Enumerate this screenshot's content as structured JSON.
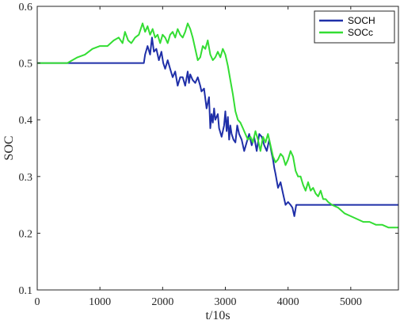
{
  "chart_data": {
    "type": "line",
    "title": "",
    "xlabel": "t/10s",
    "ylabel": "SOC",
    "xlim": [
      0,
      5760
    ],
    "ylim": [
      0.1,
      0.6
    ],
    "xticks": [
      0,
      1000,
      2000,
      3000,
      4000,
      5000
    ],
    "yticks": [
      0.1,
      0.2,
      0.3,
      0.4,
      0.5,
      0.6
    ],
    "xtick_labels": [
      "0",
      "1000",
      "2000",
      "3000",
      "4000",
      "5000"
    ],
    "ytick_labels": [
      "0.1",
      "0.2",
      "0.3",
      "0.4",
      "0.5",
      "0.6"
    ],
    "grid": false,
    "legend_position": "top-right",
    "series": [
      {
        "name": "SOCH",
        "color": "#1f2fa8",
        "x": [
          0,
          1700,
          1720,
          1760,
          1800,
          1830,
          1860,
          1900,
          1940,
          1980,
          2010,
          2040,
          2080,
          2120,
          2160,
          2200,
          2240,
          2280,
          2320,
          2360,
          2400,
          2420,
          2440,
          2480,
          2520,
          2560,
          2600,
          2620,
          2660,
          2700,
          2740,
          2760,
          2780,
          2800,
          2820,
          2840,
          2880,
          2900,
          2940,
          2980,
          3000,
          3020,
          3040,
          3060,
          3080,
          3100,
          3130,
          3160,
          3190,
          3220,
          3260,
          3300,
          3340,
          3380,
          3420,
          3460,
          3500,
          3540,
          3580,
          3620,
          3660,
          3700,
          3740,
          3760,
          3780,
          3800,
          3840,
          3880,
          3920,
          3960,
          4000,
          4040,
          4070,
          4100,
          4130,
          4160,
          4200,
          4300,
          4400,
          4500,
          4600,
          4800,
          5000,
          5200,
          5400,
          5600,
          5760
        ],
        "values": [
          0.5,
          0.5,
          0.515,
          0.53,
          0.515,
          0.545,
          0.52,
          0.525,
          0.505,
          0.52,
          0.5,
          0.49,
          0.505,
          0.49,
          0.475,
          0.485,
          0.46,
          0.475,
          0.475,
          0.46,
          0.485,
          0.465,
          0.48,
          0.47,
          0.465,
          0.475,
          0.46,
          0.45,
          0.455,
          0.42,
          0.44,
          0.385,
          0.41,
          0.395,
          0.42,
          0.4,
          0.41,
          0.385,
          0.37,
          0.39,
          0.415,
          0.38,
          0.405,
          0.365,
          0.39,
          0.375,
          0.365,
          0.36,
          0.39,
          0.375,
          0.365,
          0.345,
          0.36,
          0.375,
          0.355,
          0.37,
          0.345,
          0.375,
          0.37,
          0.355,
          0.345,
          0.365,
          0.34,
          0.33,
          0.315,
          0.305,
          0.28,
          0.29,
          0.27,
          0.25,
          0.255,
          0.25,
          0.245,
          0.23,
          0.25,
          0.25,
          0.25,
          0.25,
          0.25,
          0.25,
          0.25,
          0.25,
          0.25,
          0.25,
          0.25,
          0.25,
          0.25
        ]
      },
      {
        "name": "SOCc",
        "color": "#33dd33",
        "x": [
          0,
          480,
          560,
          640,
          760,
          880,
          1000,
          1120,
          1220,
          1300,
          1360,
          1400,
          1450,
          1500,
          1560,
          1620,
          1680,
          1720,
          1760,
          1800,
          1840,
          1880,
          1920,
          1960,
          2000,
          2040,
          2080,
          2120,
          2160,
          2200,
          2240,
          2280,
          2320,
          2360,
          2400,
          2440,
          2480,
          2520,
          2560,
          2600,
          2640,
          2680,
          2720,
          2760,
          2800,
          2840,
          2880,
          2920,
          2960,
          3000,
          3040,
          3080,
          3120,
          3160,
          3200,
          3240,
          3280,
          3320,
          3360,
          3400,
          3440,
          3480,
          3520,
          3560,
          3600,
          3640,
          3680,
          3720,
          3760,
          3800,
          3840,
          3880,
          3920,
          3960,
          4000,
          4040,
          4080,
          4120,
          4160,
          4200,
          4240,
          4280,
          4320,
          4360,
          4400,
          4440,
          4480,
          4520,
          4560,
          4600,
          4640,
          4700,
          4800,
          4900,
          5000,
          5100,
          5200,
          5300,
          5400,
          5500,
          5600,
          5700,
          5760
        ],
        "values": [
          0.5,
          0.5,
          0.505,
          0.51,
          0.515,
          0.525,
          0.53,
          0.53,
          0.54,
          0.545,
          0.535,
          0.555,
          0.54,
          0.535,
          0.545,
          0.55,
          0.57,
          0.555,
          0.565,
          0.55,
          0.56,
          0.545,
          0.55,
          0.535,
          0.55,
          0.545,
          0.535,
          0.55,
          0.555,
          0.545,
          0.56,
          0.55,
          0.545,
          0.555,
          0.57,
          0.56,
          0.545,
          0.525,
          0.505,
          0.51,
          0.53,
          0.525,
          0.54,
          0.515,
          0.505,
          0.51,
          0.52,
          0.51,
          0.525,
          0.515,
          0.495,
          0.47,
          0.445,
          0.415,
          0.4,
          0.395,
          0.385,
          0.375,
          0.365,
          0.37,
          0.36,
          0.38,
          0.365,
          0.345,
          0.37,
          0.36,
          0.375,
          0.355,
          0.335,
          0.325,
          0.33,
          0.34,
          0.335,
          0.32,
          0.33,
          0.345,
          0.335,
          0.31,
          0.3,
          0.3,
          0.285,
          0.275,
          0.29,
          0.275,
          0.28,
          0.27,
          0.265,
          0.275,
          0.26,
          0.26,
          0.255,
          0.25,
          0.245,
          0.235,
          0.23,
          0.225,
          0.22,
          0.22,
          0.215,
          0.215,
          0.21,
          0.21,
          0.21
        ]
      }
    ]
  }
}
